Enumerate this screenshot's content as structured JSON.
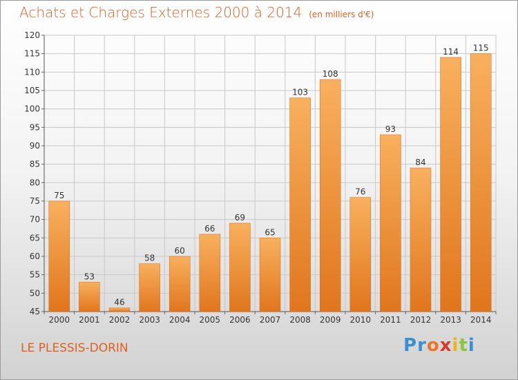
{
  "title": "Achats et Charges Externes 2000 à 2014",
  "unit": "(en milliers d'€)",
  "place": "LE PLESSIS-DORIN",
  "logo": {
    "letters": [
      "P",
      "r",
      "o",
      "x",
      "i",
      "t",
      "i"
    ],
    "colors": [
      "#3a8fd1",
      "#3a8fd1",
      "#e8762b",
      "#d43c2a",
      "#f1b21b",
      "#8cc63e",
      "#3a8fd1"
    ]
  },
  "colors": {
    "bar_light": "#f9b05e",
    "bar_dark": "#e0761d",
    "title": "#e0601e",
    "grid": "#c8c8c8"
  },
  "chart_data": {
    "type": "bar",
    "categories": [
      "2000",
      "2001",
      "2002",
      "2003",
      "2004",
      "2005",
      "2006",
      "2007",
      "2008",
      "2009",
      "2010",
      "2011",
      "2012",
      "2013",
      "2014"
    ],
    "values": [
      75,
      53,
      46,
      58,
      60,
      66,
      69,
      65,
      103,
      108,
      76,
      93,
      84,
      114,
      115
    ],
    "ylim": [
      45,
      120
    ],
    "yticks": [
      45,
      50,
      55,
      60,
      65,
      70,
      75,
      80,
      85,
      90,
      95,
      100,
      105,
      110,
      115,
      120
    ],
    "grid": true,
    "xlabel": "",
    "ylabel": ""
  }
}
